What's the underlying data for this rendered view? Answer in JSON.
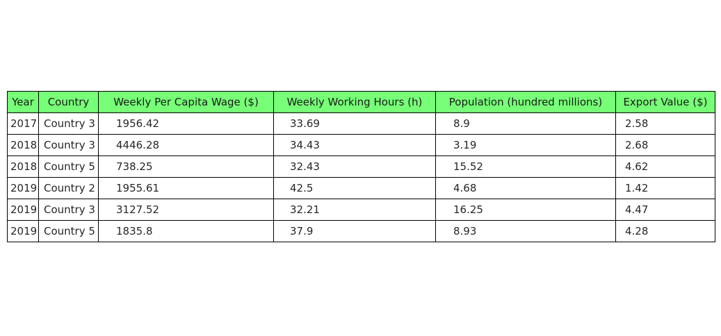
{
  "chart_data": {
    "type": "table",
    "columns": [
      "Year",
      "Country",
      "Weekly Per Capita Wage ($)",
      "Weekly Working Hours (h)",
      "Population (hundred millions)",
      "Export Value ($)"
    ],
    "rows": [
      [
        "2017",
        "Country 3",
        "1956.42",
        "33.69",
        "8.9",
        "2.58"
      ],
      [
        "2018",
        "Country 3",
        "4446.28",
        "34.43",
        "3.19",
        "2.68"
      ],
      [
        "2018",
        "Country 5",
        "738.25",
        "32.43",
        "15.52",
        "4.62"
      ],
      [
        "2019",
        "Country 2",
        "1955.61",
        "42.5",
        "4.68",
        "1.42"
      ],
      [
        "2019",
        "Country 3",
        "3127.52",
        "32.21",
        "16.25",
        "4.47"
      ],
      [
        "2019",
        "Country 5",
        "1835.8",
        "37.9",
        "8.93",
        "4.28"
      ]
    ],
    "header_color": "#77ff77",
    "border_color": "#000000"
  }
}
